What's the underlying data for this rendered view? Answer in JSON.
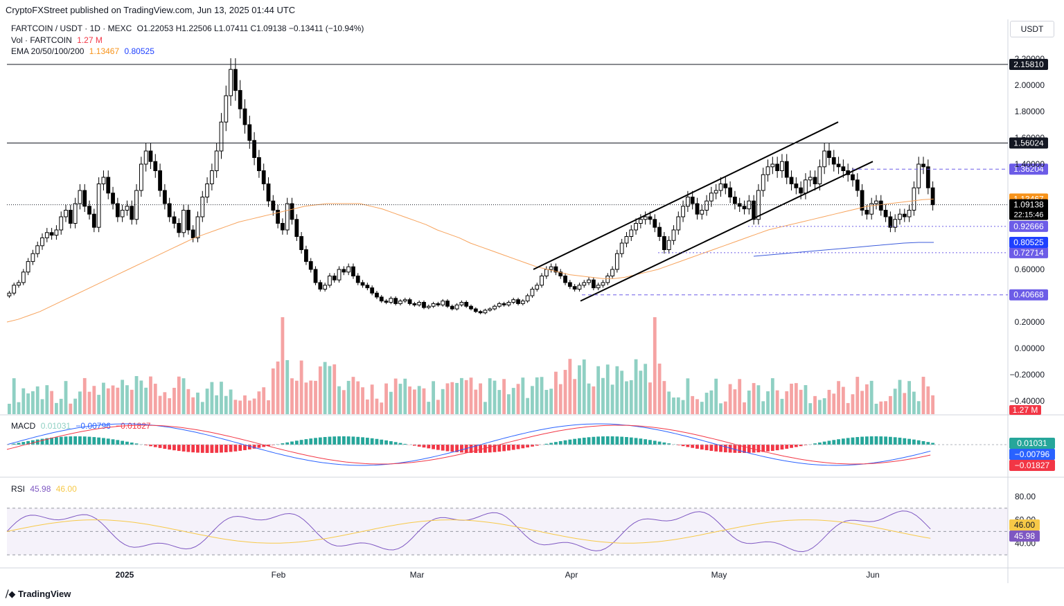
{
  "header": {
    "publisher": "CryptoFXStreet published on TradingView.com, Jun 13, 2025 01:44 UTC"
  },
  "legend": {
    "symbol": "FARTCOIN / USDT · 1D · MEXC",
    "ohlc": "O1.22053  H1.22506  L1.07411  C1.09138  −0.13411 (−10.94%)",
    "vol_label": "Vol · FARTCOIN",
    "vol_value": "1.27 M",
    "ema_label": "EMA 20/50/100/200",
    "ema50_value": "1.13467",
    "ema200_value": "0.80525",
    "macd_label": "MACD",
    "macd_v1": "0.01031",
    "macd_v2": "−0.00796",
    "macd_v3": "−0.01827",
    "rsi_label": "RSI",
    "rsi_v1": "45.98",
    "rsi_v2": "46.00"
  },
  "currency_button": "USDT",
  "logo_text": "TradingView",
  "colors": {
    "up": "#ffffff",
    "down": "#000000",
    "vol_up": "#8fd0c3",
    "vol_down": "#f5a3a3",
    "ema50": "#f7a35c",
    "ema200": "#3b5bdb",
    "macd_line": "#2962ff",
    "signal_line": "#f23645",
    "rsi_line": "#7e57c2",
    "rsi_ma": "#f7c948",
    "level_purple": "#6c5ce7"
  },
  "chart_data": {
    "type": "candlestick",
    "price_axis": {
      "ylim": [
        -0.5,
        2.5
      ],
      "ticks": [
        "2.20000",
        "2.00000",
        "1.80000",
        "1.60000",
        "1.40000",
        "0.60000",
        "0.20000",
        "0.00000",
        "−0.20000",
        "−0.40000"
      ]
    },
    "x_ticks": [
      "2025",
      "Feb",
      "Mar",
      "Apr",
      "May",
      "Jun"
    ],
    "levels": [
      {
        "value": 2.1581,
        "label": "2.15810",
        "style": "solid",
        "color": "#131722"
      },
      {
        "value": 1.56024,
        "label": "1.56024",
        "style": "solid",
        "color": "#131722"
      },
      {
        "value": 1.36204,
        "label": "1.36204",
        "style": "dashed",
        "color": "#6c5ce7"
      },
      {
        "value": 0.92666,
        "label": "0.92666",
        "style": "dotted",
        "color": "#6c5ce7"
      },
      {
        "value": 0.72714,
        "label": "0.72714",
        "style": "dotted",
        "color": "#6c5ce7"
      },
      {
        "value": 0.40668,
        "label": "0.40668",
        "style": "dashed",
        "color": "#6c5ce7"
      }
    ],
    "price_badges": [
      {
        "value": 1.13467,
        "label": "1.13467",
        "color": "#f7931a"
      },
      {
        "value": 1.09138,
        "label": "1.09138",
        "sub": "22:15:46",
        "color": "#000000"
      },
      {
        "value": 0.80525,
        "label": "0.80525",
        "color": "#1e40ff"
      }
    ],
    "closes": [
      0.42,
      0.48,
      0.5,
      0.58,
      0.66,
      0.72,
      0.78,
      0.84,
      0.88,
      0.86,
      0.9,
      1.0,
      1.05,
      0.95,
      1.1,
      1.2,
      1.08,
      1.02,
      0.92,
      1.25,
      1.3,
      1.18,
      1.1,
      1.0,
      1.05,
      1.08,
      0.98,
      1.2,
      1.4,
      1.5,
      1.42,
      1.35,
      1.2,
      1.1,
      1.0,
      0.95,
      0.88,
      1.05,
      0.9,
      0.84,
      1.0,
      1.15,
      1.25,
      1.35,
      1.5,
      1.72,
      1.92,
      2.12,
      1.96,
      1.82,
      1.7,
      1.58,
      1.45,
      1.35,
      1.25,
      1.12,
      1.05,
      0.95,
      0.9,
      1.1,
      0.98,
      0.85,
      0.75,
      0.66,
      0.6,
      0.5,
      0.45,
      0.48,
      0.55,
      0.52,
      0.6,
      0.58,
      0.62,
      0.55,
      0.5,
      0.48,
      0.46,
      0.42,
      0.39,
      0.36,
      0.35,
      0.38,
      0.34,
      0.36,
      0.37,
      0.34,
      0.33,
      0.35,
      0.31,
      0.32,
      0.34,
      0.33,
      0.36,
      0.32,
      0.3,
      0.33,
      0.35,
      0.32,
      0.3,
      0.28,
      0.27,
      0.29,
      0.3,
      0.32,
      0.34,
      0.33,
      0.35,
      0.37,
      0.34,
      0.36,
      0.4,
      0.45,
      0.48,
      0.55,
      0.6,
      0.62,
      0.58,
      0.55,
      0.5,
      0.47,
      0.45,
      0.48,
      0.5,
      0.52,
      0.46,
      0.48,
      0.5,
      0.55,
      0.6,
      0.72,
      0.8,
      0.85,
      0.9,
      0.95,
      0.98,
      1.0,
      0.98,
      0.92,
      0.85,
      0.75,
      0.82,
      0.9,
      1.0,
      1.08,
      1.15,
      1.1,
      1.02,
      1.05,
      1.12,
      1.18,
      1.2,
      1.25,
      1.22,
      1.15,
      1.1,
      1.08,
      1.06,
      1.12,
      0.98,
      1.2,
      1.32,
      1.38,
      1.4,
      1.35,
      1.42,
      1.3,
      1.25,
      1.22,
      1.18,
      1.28,
      1.3,
      1.25,
      1.38,
      1.5,
      1.45,
      1.4,
      1.38,
      1.35,
      1.32,
      1.28,
      1.2,
      1.05,
      1.02,
      1.1,
      1.12,
      1.05,
      1.0,
      0.92,
      0.98,
      1.02,
      1.0,
      1.05,
      1.22,
      1.4,
      1.38,
      1.22,
      1.09138
    ],
    "ema50": [
      0.2,
      0.22,
      0.25,
      0.28,
      0.32,
      0.36,
      0.4,
      0.44,
      0.48,
      0.52,
      0.56,
      0.6,
      0.64,
      0.68,
      0.72,
      0.76,
      0.8,
      0.84,
      0.87,
      0.9,
      0.93,
      0.96,
      0.98,
      1.0,
      1.02,
      1.04,
      1.06,
      1.08,
      1.09,
      1.1,
      1.1,
      1.1,
      1.1,
      1.08,
      1.06,
      1.03,
      1.0,
      0.97,
      0.94,
      0.9,
      0.87,
      0.84,
      0.8,
      0.77,
      0.74,
      0.71,
      0.68,
      0.65,
      0.62,
      0.6,
      0.58,
      0.56,
      0.55,
      0.54,
      0.53,
      0.53,
      0.54,
      0.56,
      0.58,
      0.6,
      0.63,
      0.66,
      0.69,
      0.72,
      0.75,
      0.78,
      0.81,
      0.84,
      0.87,
      0.9,
      0.92,
      0.94,
      0.96,
      0.98,
      1.0,
      1.02,
      1.04,
      1.06,
      1.08,
      1.09,
      1.1,
      1.11,
      1.12,
      1.13,
      1.13467
    ],
    "ema200": [
      0.7,
      0.71,
      0.72,
      0.73,
      0.74,
      0.75,
      0.76,
      0.77,
      0.78,
      0.79,
      0.8,
      0.805,
      0.80525
    ],
    "volumes_note": "volume bars shown in lower price pane",
    "rsi_ylim": [
      20,
      90
    ],
    "rsi_ticks": [
      "80.00",
      "60.00",
      "40.00"
    ],
    "rsi_bands": [
      70,
      50,
      30
    ]
  }
}
